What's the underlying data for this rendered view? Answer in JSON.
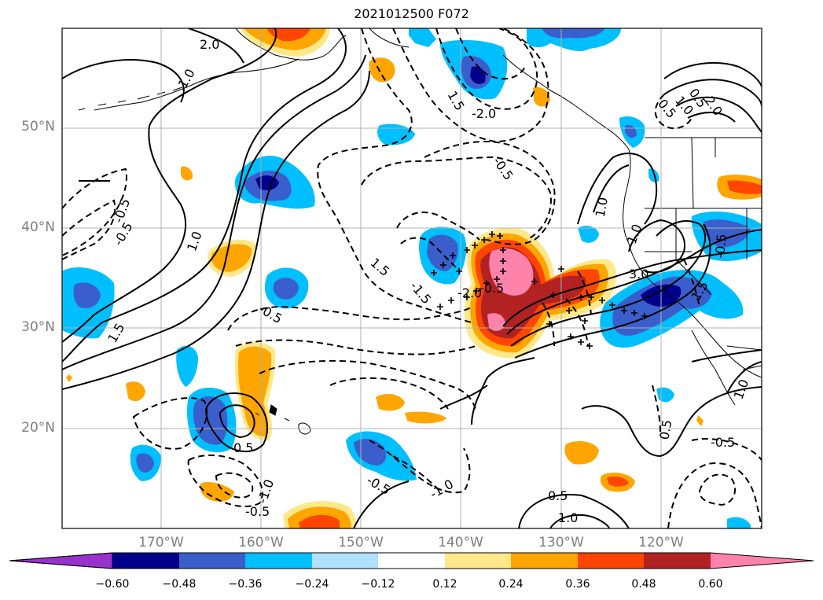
{
  "title": "2021012500 F072",
  "map": {
    "lat_labels": [
      {
        "id": "lat-50",
        "text": "50°N"
      },
      {
        "id": "lat-40",
        "text": "40°N"
      },
      {
        "id": "lat-30",
        "text": "30°N"
      },
      {
        "id": "lat-20",
        "text": "20°N"
      }
    ],
    "lon_labels": [
      {
        "id": "lon-170w",
        "text": "170°W"
      },
      {
        "id": "lon-160w",
        "text": "160°W"
      },
      {
        "id": "lon-150w",
        "text": "150°W"
      },
      {
        "id": "lon-140w",
        "text": "140°W"
      },
      {
        "id": "lon-130w",
        "text": "130°W"
      },
      {
        "id": "lon-120w",
        "text": "120°W"
      }
    ],
    "contour_labels": [
      "2.0",
      "1.0",
      "1.5",
      "-2.0",
      "-0.5",
      "1.0",
      "-0.5",
      "1.5",
      "2.0",
      "0.5",
      "-0.5",
      "1.0",
      "0.5",
      "1.0",
      "-1.5",
      "-2.0",
      "-0.5",
      "1.5",
      "3.0",
      "-0.5",
      "1.0",
      "-0.5",
      "1.5",
      "0.5",
      "-1.0",
      "-0.5",
      "1.0",
      "-0.5",
      "-1.0",
      "0.5",
      "1.0",
      "0.5",
      "-0.5"
    ]
  },
  "colorbar": {
    "colors": [
      "#9932cc",
      "#00008b",
      "#3a5fcd",
      "#00bfff",
      "#b0e2ff",
      "#ffffff",
      "#ffe88a",
      "#ffa500",
      "#ff4500",
      "#b22222",
      "#ff82ab"
    ],
    "tick_labels": [
      "−0.60",
      "−0.48",
      "−0.36",
      "−0.24",
      "−0.12",
      "0.12",
      "0.24",
      "0.36",
      "0.48",
      "0.60"
    ]
  }
}
